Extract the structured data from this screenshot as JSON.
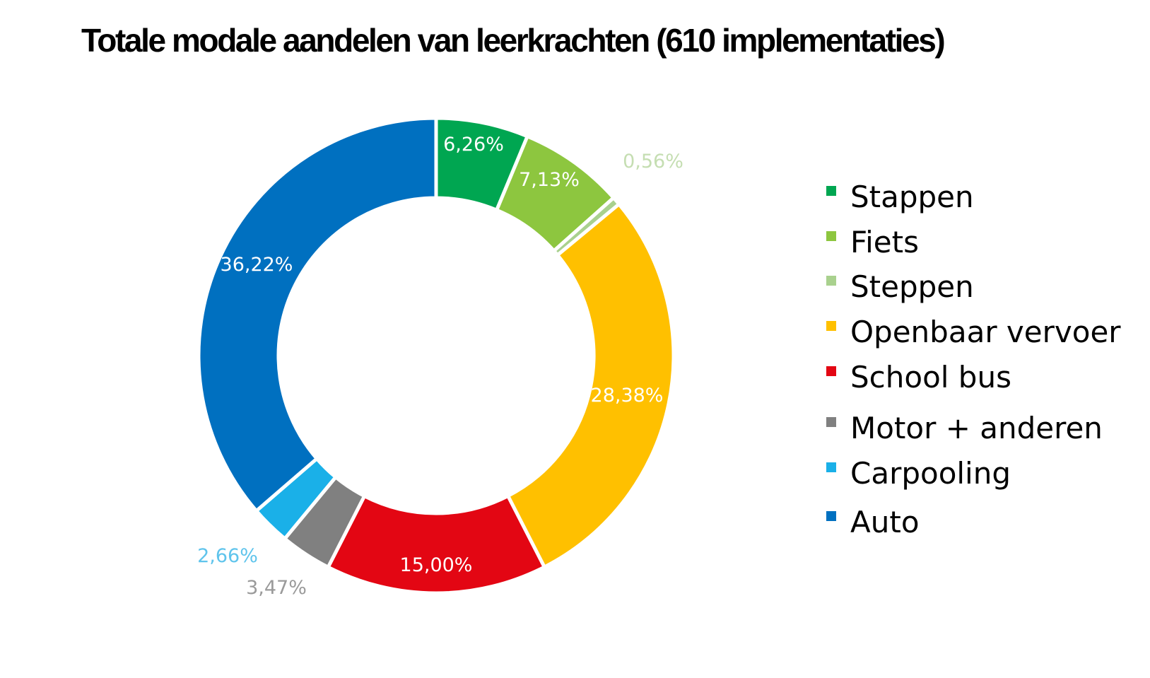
{
  "chart_data": {
    "type": "pie",
    "title": "Totale modale aandelen van leerkrachten (610 implementaties)",
    "categories": [
      "Stappen",
      "Fiets",
      "Steppen",
      "Openbaar vervoer",
      "School bus",
      "Motor + anderen",
      "Carpooling",
      "Auto"
    ],
    "values": [
      6.26,
      7.13,
      0.56,
      28.38,
      15.0,
      3.47,
      2.66,
      36.22
    ],
    "value_labels": [
      "6,26%",
      "7,13%",
      "0,56%",
      "28,38%",
      "15,00%",
      "3,47%",
      "2,66%",
      "36,22%"
    ],
    "colors": [
      "#00a651",
      "#8dc63f",
      "#a9d18e",
      "#ffc000",
      "#e30613",
      "#808080",
      "#1ab0e8",
      "#0070c0"
    ],
    "label_colors": [
      "#ffffff",
      "#ffffff",
      "#c5deb2",
      "#ffffff",
      "#ffffff",
      "#9a9a9a",
      "#5fc4ec",
      "#ffffff"
    ],
    "donut": true,
    "legend_position": "right"
  }
}
